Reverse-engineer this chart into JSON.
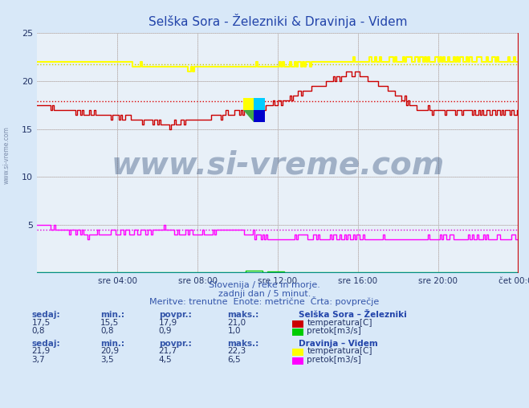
{
  "title": "Selška Sora - Železniki & Dravinja - Videm",
  "title_color": "#2244aa",
  "bg_color": "#d8e8f8",
  "plot_bg_color": "#e8f0f8",
  "xmin": 0,
  "xmax": 288,
  "ymin": 0,
  "ymax": 25,
  "yticks": [
    0,
    5,
    10,
    15,
    20,
    25
  ],
  "xtick_labels": [
    "sre 04:00",
    "sre 08:00",
    "sre 12:00",
    "sre 16:00",
    "sre 20:00",
    "čet 00:00"
  ],
  "xtick_positions": [
    48,
    96,
    144,
    192,
    240,
    288
  ],
  "watermark": "www.si-vreme.com",
  "watermark_color": "#1a3a6a",
  "watermark_alpha": 0.35,
  "subtitle1": "Slovenija / reke in morje.",
  "subtitle2": "zadnji dan / 5 minut.",
  "subtitle3": "Meritve: trenutne  Enote: metrične  Črta: povprečje",
  "subtitle_color": "#3355aa",
  "legend_title1": "Selška Sora – Železniki",
  "legend_title2": "Dravinja – Videm",
  "legend_color": "#2244aa",
  "stat_label_color": "#3355aa",
  "stat_val_color": "#223366",
  "avg_line_red_val": 17.9,
  "avg_line_yellow_val": 21.7,
  "avg_line_magenta_val": 4.5,
  "selska_temp_color": "#cc0000",
  "selska_flow_color": "#00cc00",
  "dravinja_temp_color": "#ffff00",
  "dravinja_flow_color": "#ff00ff",
  "avg_dotted_red": "#dd0000",
  "avg_dotted_yellow": "#cccc00",
  "avg_dotted_magenta": "#dd00dd",
  "sidebar_text": "www.si-vreme.com",
  "sidebar_color": "#667799"
}
